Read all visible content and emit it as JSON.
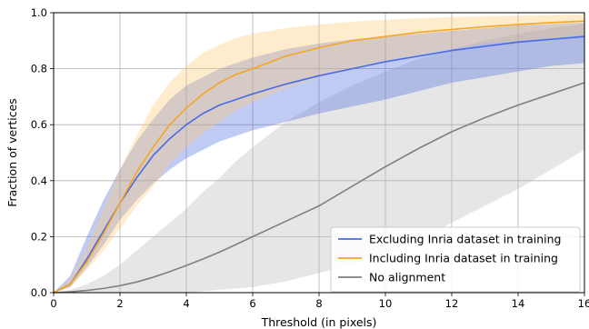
{
  "chart_data": {
    "type": "line",
    "xlabel": "Threshold (in pixels)",
    "ylabel": "Fraction of vertices",
    "xlim": [
      0,
      16
    ],
    "ylim": [
      0,
      1
    ],
    "xticks": [
      "0",
      "2",
      "4",
      "6",
      "8",
      "10",
      "12",
      "14",
      "16"
    ],
    "yticks": [
      "0.0",
      "0.2",
      "0.4",
      "0.6",
      "0.8",
      "1.0"
    ],
    "grid": true,
    "legend_position": "lower-right",
    "x": [
      0,
      0.5,
      1,
      1.5,
      2,
      2.5,
      3,
      3.5,
      4,
      4.5,
      5,
      5.5,
      6,
      7,
      8,
      9,
      10,
      11,
      12,
      13,
      14,
      15,
      16
    ],
    "series": [
      {
        "name": "Excluding Inria dataset in training",
        "color": "#4a6be0",
        "fill": "#4a6be0",
        "values": [
          0,
          0.03,
          0.12,
          0.22,
          0.32,
          0.41,
          0.49,
          0.55,
          0.6,
          0.64,
          0.67,
          0.69,
          0.71,
          0.745,
          0.775,
          0.8,
          0.825,
          0.845,
          0.865,
          0.88,
          0.895,
          0.905,
          0.915
        ],
        "lower": [
          0,
          0.02,
          0.09,
          0.17,
          0.26,
          0.33,
          0.39,
          0.44,
          0.48,
          0.51,
          0.54,
          0.56,
          0.58,
          0.61,
          0.64,
          0.665,
          0.69,
          0.72,
          0.75,
          0.77,
          0.79,
          0.81,
          0.82
        ],
        "upper": [
          0,
          0.06,
          0.2,
          0.33,
          0.44,
          0.54,
          0.62,
          0.69,
          0.74,
          0.77,
          0.8,
          0.82,
          0.84,
          0.87,
          0.89,
          0.905,
          0.915,
          0.925,
          0.935,
          0.945,
          0.955,
          0.96,
          0.965
        ]
      },
      {
        "name": "Including Inria dataset in training",
        "color": "#f5a623",
        "fill": "#ffc870",
        "values": [
          0,
          0.03,
          0.11,
          0.21,
          0.32,
          0.43,
          0.52,
          0.6,
          0.66,
          0.71,
          0.75,
          0.78,
          0.8,
          0.845,
          0.875,
          0.9,
          0.915,
          0.93,
          0.94,
          0.95,
          0.958,
          0.965,
          0.97
        ],
        "lower": [
          0,
          0.02,
          0.08,
          0.15,
          0.23,
          0.31,
          0.38,
          0.46,
          0.52,
          0.57,
          0.61,
          0.65,
          0.68,
          0.73,
          0.77,
          0.8,
          0.83,
          0.85,
          0.87,
          0.89,
          0.9,
          0.91,
          0.92
        ],
        "upper": [
          0,
          0.05,
          0.16,
          0.3,
          0.44,
          0.56,
          0.67,
          0.75,
          0.81,
          0.855,
          0.885,
          0.91,
          0.925,
          0.945,
          0.958,
          0.968,
          0.975,
          0.98,
          0.985,
          0.988,
          0.99,
          0.992,
          0.995
        ]
      },
      {
        "name": "No alignment",
        "color": "#808080",
        "fill": "#b8b8b8",
        "values": [
          0,
          0.003,
          0.008,
          0.015,
          0.025,
          0.038,
          0.055,
          0.075,
          0.097,
          0.12,
          0.145,
          0.172,
          0.2,
          0.255,
          0.31,
          0.38,
          0.45,
          0.515,
          0.575,
          0.625,
          0.67,
          0.71,
          0.75
        ],
        "lower": [
          0,
          0,
          0,
          0,
          0,
          0,
          0,
          0,
          0,
          0.005,
          0.01,
          0.015,
          0.02,
          0.04,
          0.07,
          0.1,
          0.14,
          0.19,
          0.25,
          0.31,
          0.37,
          0.44,
          0.51
        ],
        "upper": [
          0,
          0.01,
          0.03,
          0.06,
          0.1,
          0.15,
          0.2,
          0.25,
          0.3,
          0.36,
          0.41,
          0.47,
          0.52,
          0.61,
          0.68,
          0.74,
          0.79,
          0.835,
          0.87,
          0.9,
          0.925,
          0.945,
          0.96
        ]
      }
    ]
  }
}
